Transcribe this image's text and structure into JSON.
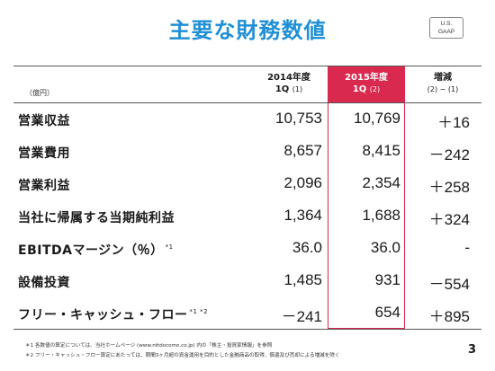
{
  "title": "主要な財務数値",
  "badge": {
    "line1": "U.S.",
    "line2": "GAAP"
  },
  "unit_label": "（億円）",
  "columns": [
    {
      "line1": "2014年度",
      "line2": "1Q",
      "tag": "(1)"
    },
    {
      "line1": "2015年度",
      "line2": "1Q",
      "tag": "(2)"
    },
    {
      "line1": "増減",
      "line2": "(2) − (1)",
      "tag": ""
    }
  ],
  "rows": [
    {
      "label": "営業収益",
      "note": "",
      "v2014": "10,753",
      "v2015": "10,769",
      "diff": "＋16"
    },
    {
      "label": "営業費用",
      "note": "",
      "v2014": "8,657",
      "v2015": "8,415",
      "diff": "－242"
    },
    {
      "label": "営業利益",
      "note": "",
      "v2014": "2,096",
      "v2015": "2,354",
      "diff": "＋258"
    },
    {
      "label": "当社に帰属する当期純利益",
      "note": "",
      "v2014": "1,364",
      "v2015": "1,688",
      "diff": "＋324"
    },
    {
      "label": "EBITDAマージン（％）",
      "note": "*1",
      "v2014": "36.0",
      "v2015": "36.0",
      "diff": "-"
    },
    {
      "label": "設備投資",
      "note": "",
      "v2014": "1,485",
      "v2015": "931",
      "diff": "－554"
    },
    {
      "label": "フリー・キャッシュ・フロー",
      "note": "*1 *2",
      "v2014": "－241",
      "v2015": "654",
      "diff": "＋895"
    }
  ],
  "footnotes": [
    "＊1 各数値の算定については、当社ホームページ (www.nttdocomo.co.jp) 内の「株主・投資家情報」を参照",
    "＊2 フリー・キャッシュ・フロー算定にあたっては、期間3ヶ月超の資金運用を目的とした金融商品の取得、償還及び売却による増減を除く"
  ],
  "page_number": "3",
  "colors": {
    "title": "#1f8fd6",
    "accent": "#d9294f"
  }
}
